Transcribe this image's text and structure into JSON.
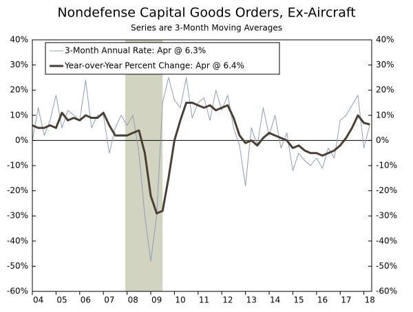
{
  "chart_data": {
    "type": "line",
    "title": "Nondefense Capital Goods Orders, Ex-Aircraft",
    "subtitle": "Series are 3-Month Moving Averages",
    "x": [
      2004,
      2004.25,
      2004.5,
      2004.75,
      2005,
      2005.25,
      2005.5,
      2005.75,
      2006,
      2006.25,
      2006.5,
      2006.75,
      2007,
      2007.25,
      2007.5,
      2007.75,
      2008,
      2008.25,
      2008.5,
      2008.75,
      2009,
      2009.25,
      2009.5,
      2009.75,
      2010,
      2010.25,
      2010.5,
      2010.75,
      2011,
      2011.25,
      2011.5,
      2011.75,
      2012,
      2012.25,
      2012.5,
      2012.75,
      2013,
      2013.25,
      2013.5,
      2013.75,
      2014,
      2014.25,
      2014.5,
      2014.75,
      2015,
      2015.25,
      2015.5,
      2015.75,
      2016,
      2016.25,
      2016.5,
      2016.75,
      2017,
      2017.25,
      2017.5,
      2017.75,
      2018,
      2018.25
    ],
    "series": [
      {
        "name": "3-Month Annual Rate: Apr @ 6.3%",
        "color": "#8c9db5",
        "width": 1,
        "values": [
          0,
          13,
          2,
          8,
          18,
          5,
          12,
          10,
          8,
          24,
          5,
          10,
          10,
          -5,
          5,
          10,
          6,
          10,
          -5,
          -30,
          -48,
          -30,
          15,
          25,
          16,
          13,
          25,
          9,
          15,
          17,
          8,
          20,
          12,
          18,
          5,
          -2,
          -18,
          5,
          -2,
          13,
          2,
          10,
          -3,
          3,
          -12,
          -5,
          -8,
          -10,
          -7,
          -11,
          -3,
          -7,
          8,
          10,
          14,
          18,
          -3,
          6.3
        ]
      },
      {
        "name": "Year-over-Year Percent Change: Apr @ 6.4%",
        "color": "#4a3f35",
        "width": 3,
        "values": [
          6,
          5,
          5,
          6,
          5,
          11,
          8,
          9,
          8,
          10,
          9,
          9,
          11,
          6,
          2,
          2,
          2,
          3,
          4,
          -5,
          -22,
          -29,
          -28,
          -15,
          0,
          8,
          15,
          15,
          14,
          13,
          14,
          12,
          13,
          14,
          9,
          2,
          -1,
          0,
          -2,
          1,
          3,
          2,
          1,
          0,
          -3,
          -2,
          -4,
          -5,
          -5,
          -6,
          -5,
          -4,
          -2,
          1,
          5,
          10,
          7,
          6.4
        ]
      }
    ],
    "recession": [
      2007.92,
      2009.5
    ],
    "xlim": [
      2004,
      2018.33
    ],
    "xticks": [
      {
        "value": 2004,
        "label": "04"
      },
      {
        "value": 2005,
        "label": "05"
      },
      {
        "value": 2006,
        "label": "06"
      },
      {
        "value": 2007,
        "label": "07"
      },
      {
        "value": 2008,
        "label": "08"
      },
      {
        "value": 2009,
        "label": "09"
      },
      {
        "value": 2010,
        "label": "10"
      },
      {
        "value": 2011,
        "label": "11"
      },
      {
        "value": 2012,
        "label": "12"
      },
      {
        "value": 2013,
        "label": "13"
      },
      {
        "value": 2014,
        "label": "14"
      },
      {
        "value": 2015,
        "label": "15"
      },
      {
        "value": 2016,
        "label": "16"
      },
      {
        "value": 2017,
        "label": "17"
      },
      {
        "value": 2018,
        "label": "18"
      }
    ],
    "ylim": [
      -60,
      40
    ],
    "yticks": [
      {
        "value": -60,
        "label": "-60%"
      },
      {
        "value": -50,
        "label": "-50%"
      },
      {
        "value": -40,
        "label": "-40%"
      },
      {
        "value": -30,
        "label": "-30%"
      },
      {
        "value": -20,
        "label": "-20%"
      },
      {
        "value": -10,
        "label": "-10%"
      },
      {
        "value": 0,
        "label": "0%"
      },
      {
        "value": 10,
        "label": "10%"
      },
      {
        "value": 20,
        "label": "20%"
      },
      {
        "value": 30,
        "label": "30%"
      },
      {
        "value": 40,
        "label": "40%"
      }
    ],
    "y2lim": [
      -60,
      40
    ],
    "y2ticks": [
      {
        "value": -60,
        "label": "-60%"
      },
      {
        "value": -50,
        "label": "-50%"
      },
      {
        "value": -40,
        "label": "-40%"
      },
      {
        "value": -30,
        "label": "-30%"
      },
      {
        "value": -20,
        "label": "-20%"
      },
      {
        "value": -10,
        "label": "-10%"
      },
      {
        "value": 0,
        "label": "0%"
      },
      {
        "value": 10,
        "label": "10%"
      },
      {
        "value": 20,
        "label": "20%"
      },
      {
        "value": 30,
        "label": "30%"
      },
      {
        "value": 40,
        "label": "40%"
      }
    ]
  }
}
